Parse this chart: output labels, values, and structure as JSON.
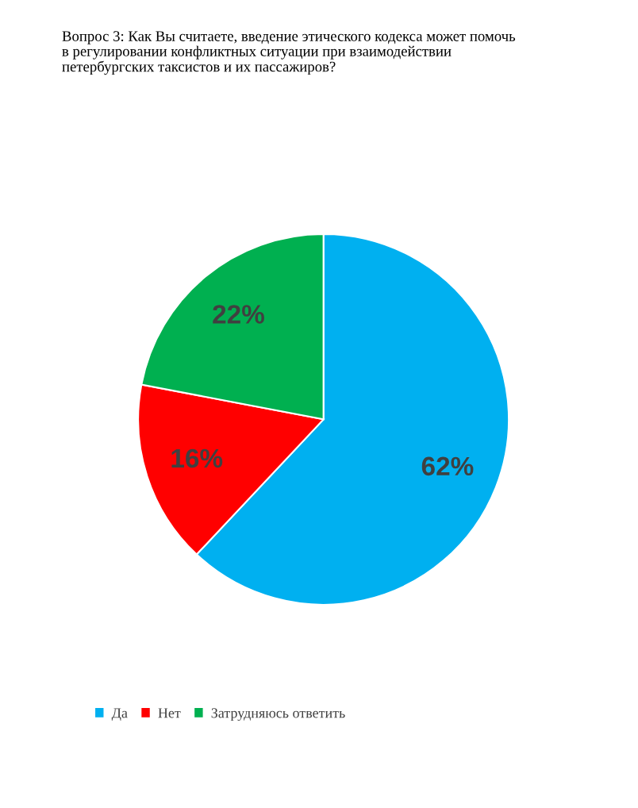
{
  "chart_data": {
    "type": "pie",
    "title": "Вопрос 3: Как Вы считаете, введение этического кодекса может помочь\nв регулировании конфликтных ситуации при взаимодействии\nпетербургских таксистов и их пассажиров?",
    "categories": [
      "Да",
      "Нет",
      "Затрудняюсь ответить"
    ],
    "values": [
      62,
      16,
      22
    ],
    "value_labels": [
      "62%",
      "16%",
      "22%"
    ],
    "colors": [
      "#00b0f0",
      "#ff0000",
      "#00b050"
    ],
    "legend": "bottom"
  }
}
